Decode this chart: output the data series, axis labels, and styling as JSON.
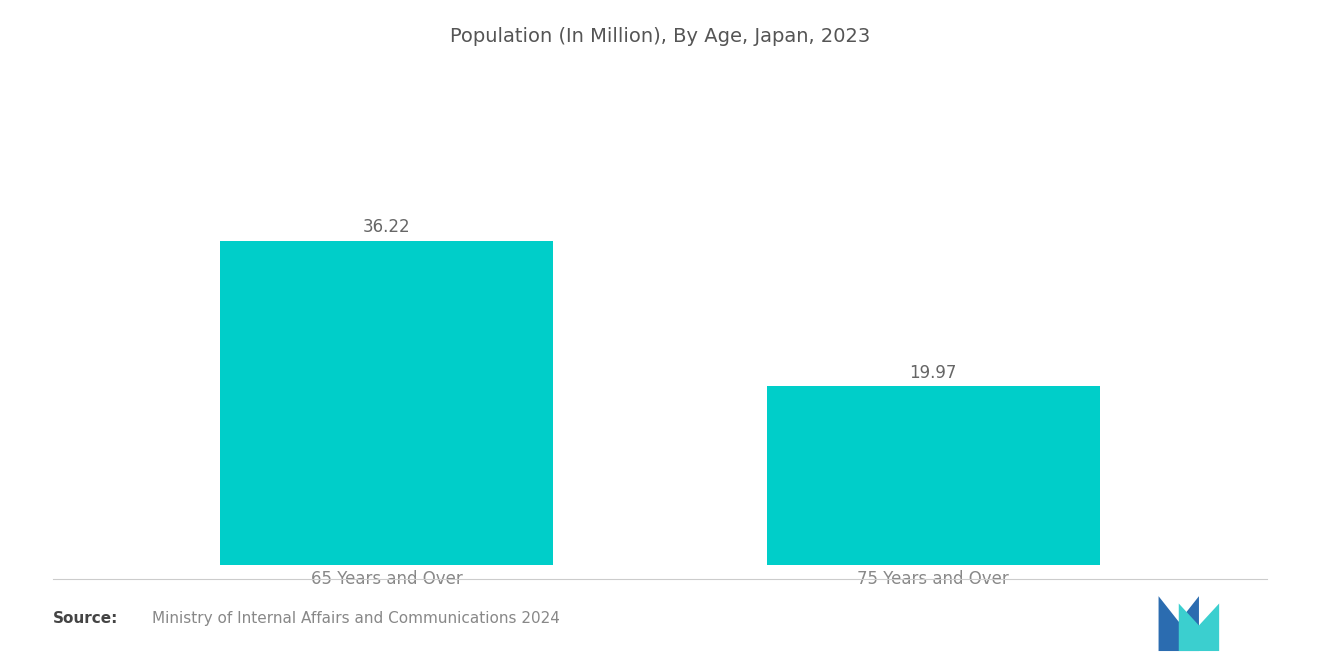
{
  "title": "Population (In Million), By Age, Japan, 2023",
  "categories": [
    "65 Years and Over",
    "75 Years and Over"
  ],
  "values": [
    36.22,
    19.97
  ],
  "bar_color": "#00CEC9",
  "value_labels": [
    "36.22",
    "19.97"
  ],
  "source_bold": "Source:",
  "source_text": "Ministry of Internal Affairs and Communications 2024",
  "background_color": "#ffffff",
  "title_color": "#555555",
  "label_color": "#888888",
  "value_color": "#666666",
  "source_color": "#888888",
  "bar_width": 0.28,
  "ylim": [
    0,
    46
  ],
  "title_fontsize": 14,
  "label_fontsize": 12,
  "value_fontsize": 12,
  "source_fontsize": 11,
  "x_positions": [
    0.27,
    0.73
  ]
}
